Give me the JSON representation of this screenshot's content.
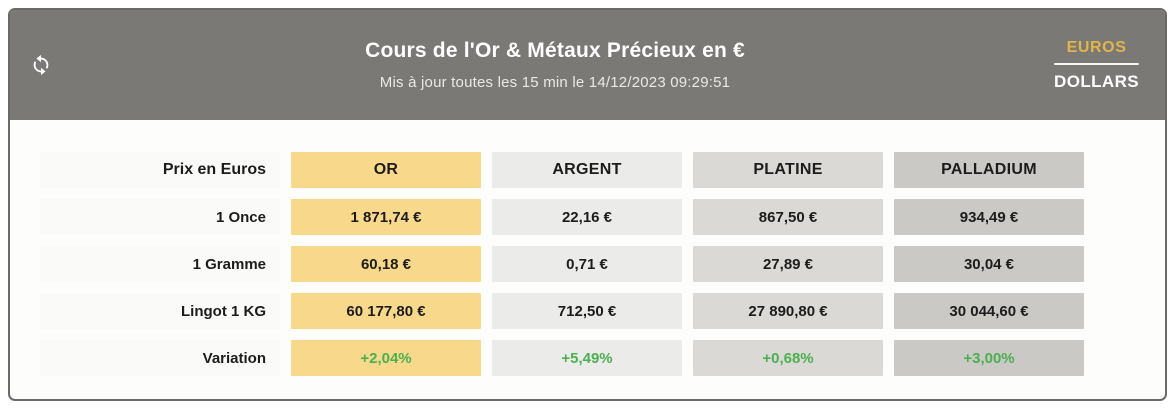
{
  "header": {
    "title": "Cours de l'Or & Métaux Précieux en €",
    "subtitle": "Mis à jour toutes les 15 min le 14/12/2023 09:29:51",
    "refresh_icon": "refresh-icon",
    "currency_toggle": {
      "active": "EUROS",
      "inactive": "DOLLARS"
    }
  },
  "table": {
    "corner_label": "Prix en Euros",
    "columns": [
      {
        "key": "or",
        "label": "OR",
        "color": "#f8d98c"
      },
      {
        "key": "argent",
        "label": "ARGENT",
        "color": "#ebebe9"
      },
      {
        "key": "platine",
        "label": "PLATINE",
        "color": "#dad9d6"
      },
      {
        "key": "palladium",
        "label": "PALLADIUM",
        "color": "#cac9c6"
      }
    ],
    "rows": [
      {
        "label": "1 Once",
        "variation": false,
        "values": [
          "1 871,74 €",
          "22,16 €",
          "867,50 €",
          "934,49 €"
        ]
      },
      {
        "label": "1 Gramme",
        "variation": false,
        "values": [
          "60,18 €",
          "0,71 €",
          "27,89 €",
          "30,04 €"
        ]
      },
      {
        "label": "Lingot 1 KG",
        "variation": false,
        "values": [
          "60 177,80 €",
          "712,50 €",
          "27 890,80 €",
          "30 044,60 €"
        ]
      },
      {
        "label": "Variation",
        "variation": true,
        "values": [
          "+2,04%",
          "+5,49%",
          "+0,68%",
          "+3,00%"
        ]
      }
    ]
  },
  "colors": {
    "header_bg": "#7b7975",
    "card_border": "#6c6a68",
    "accent_gold": "#e2b44c",
    "gold_cell_bg": "#f8d98c",
    "argent_cell_bg": "#ebebe9",
    "platine_cell_bg": "#dad9d6",
    "palladium_cell_bg": "#cac9c6",
    "label_cell_bg": "#fafaf8",
    "variation_green": "#4caf50"
  }
}
